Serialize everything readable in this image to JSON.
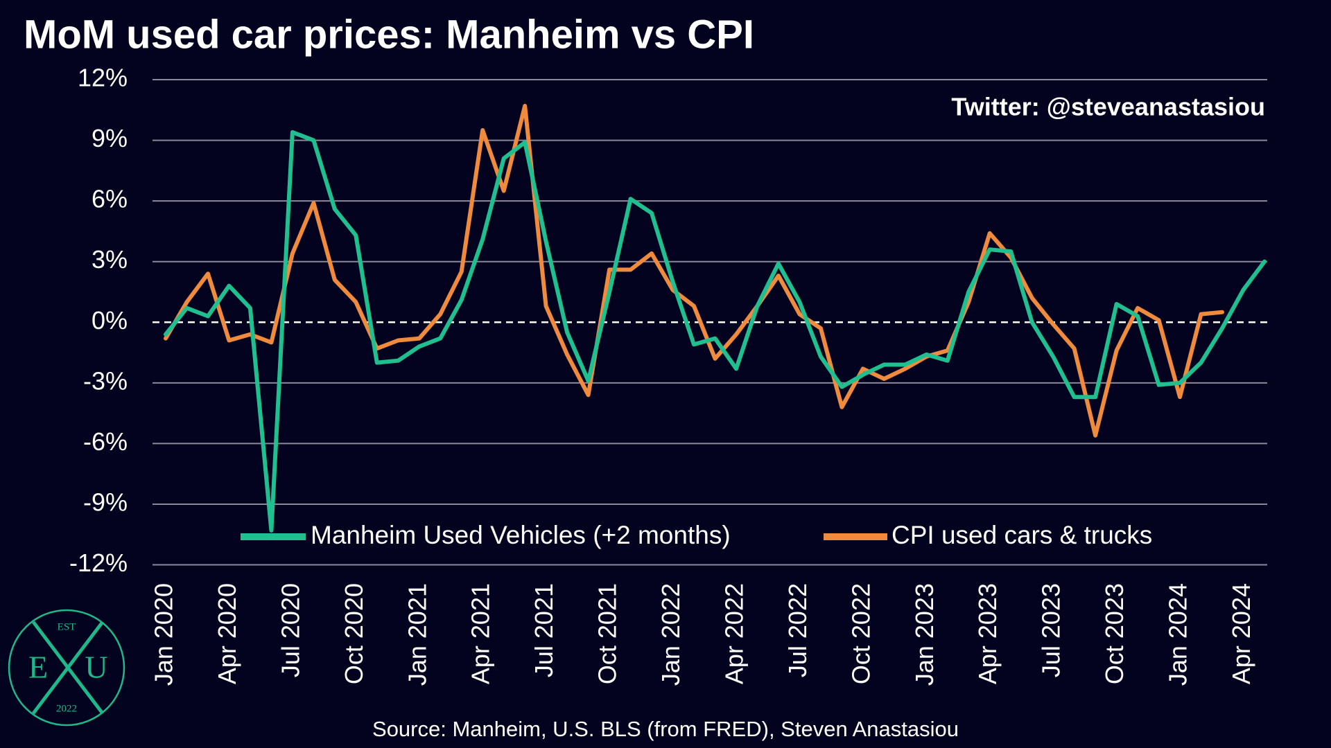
{
  "chart_data": {
    "type": "line",
    "title": "MoM used car prices: Manheim vs CPI",
    "annotation": "Twitter: @steveanastasiou",
    "source": "Source: Manheim, U.S. BLS (from FRED), Steven Anastasiou",
    "logo": {
      "top": "EST",
      "left": "E",
      "right": "U",
      "bottom": "2022"
    },
    "categories": [
      "Jan 2020",
      null,
      null,
      "Apr 2020",
      null,
      null,
      "Jul 2020",
      null,
      null,
      "Oct 2020",
      null,
      null,
      "Jan 2021",
      null,
      null,
      "Apr 2021",
      null,
      null,
      "Jul 2021",
      null,
      null,
      "Oct 2021",
      null,
      null,
      "Jan 2022",
      null,
      null,
      "Apr 2022",
      null,
      null,
      "Jul 2022",
      null,
      null,
      "Oct 2022",
      null,
      null,
      "Jan 2023",
      null,
      null,
      "Apr 2023",
      null,
      null,
      "Jul 2023",
      null,
      null,
      "Oct 2023",
      null,
      null,
      "Jan 2024",
      null,
      null,
      "Apr 2024",
      null
    ],
    "series": [
      {
        "name": "Manheim Used Vehicles (+2 months)",
        "color": "#1fbf8f",
        "values": [
          -0.6,
          0.7,
          0.3,
          1.8,
          0.7,
          -10.3,
          9.4,
          9.0,
          5.6,
          4.3,
          -2.0,
          -1.9,
          -1.2,
          -0.8,
          1.1,
          4.1,
          8.1,
          8.9,
          4.0,
          -0.5,
          -2.9,
          1.5,
          6.1,
          5.4,
          2.0,
          -1.1,
          -0.8,
          -2.3,
          0.8,
          2.9,
          1.0,
          -1.7,
          -3.2,
          -2.6,
          -2.1,
          -2.1,
          -1.6,
          -1.9,
          1.5,
          3.6,
          3.5,
          0.0,
          -1.7,
          -3.7,
          -3.7,
          0.9,
          0.3,
          -3.1,
          -3.0,
          -2.0,
          -0.3,
          1.6,
          3.0
        ]
      },
      {
        "name": "CPI used cars & trucks",
        "color": "#f08a3c",
        "values": [
          -0.8,
          1.0,
          2.4,
          -0.9,
          -0.6,
          -1.0,
          3.4,
          5.9,
          2.1,
          1.0,
          -1.3,
          -0.9,
          -0.8,
          0.4,
          2.5,
          9.5,
          6.5,
          10.7,
          0.8,
          -1.6,
          -3.6,
          2.6,
          2.6,
          3.4,
          1.6,
          0.8,
          -1.8,
          -0.6,
          0.8,
          2.3,
          0.4,
          -0.3,
          -4.2,
          -2.3,
          -2.8,
          -2.3,
          -1.7,
          -1.4,
          1.0,
          4.4,
          3.2,
          1.2,
          -0.1,
          -1.3,
          -5.6,
          -1.4,
          0.7,
          0.1,
          -3.7,
          0.4,
          0.5,
          null,
          null
        ]
      }
    ],
    "ylim": [
      -12,
      12
    ],
    "yticks": [
      {
        "value": -12,
        "label": "-12%"
      },
      {
        "value": -9,
        "label": "-9%"
      },
      {
        "value": -6,
        "label": "-6%"
      },
      {
        "value": -3,
        "label": "-3%"
      },
      {
        "value": 0,
        "label": "0%"
      },
      {
        "value": 3,
        "label": "3%"
      },
      {
        "value": 6,
        "label": "6%"
      },
      {
        "value": 9,
        "label": "9%"
      },
      {
        "value": 12,
        "label": "12%"
      }
    ],
    "grid": true,
    "zero_line": "dashed",
    "legend": "bottom"
  }
}
